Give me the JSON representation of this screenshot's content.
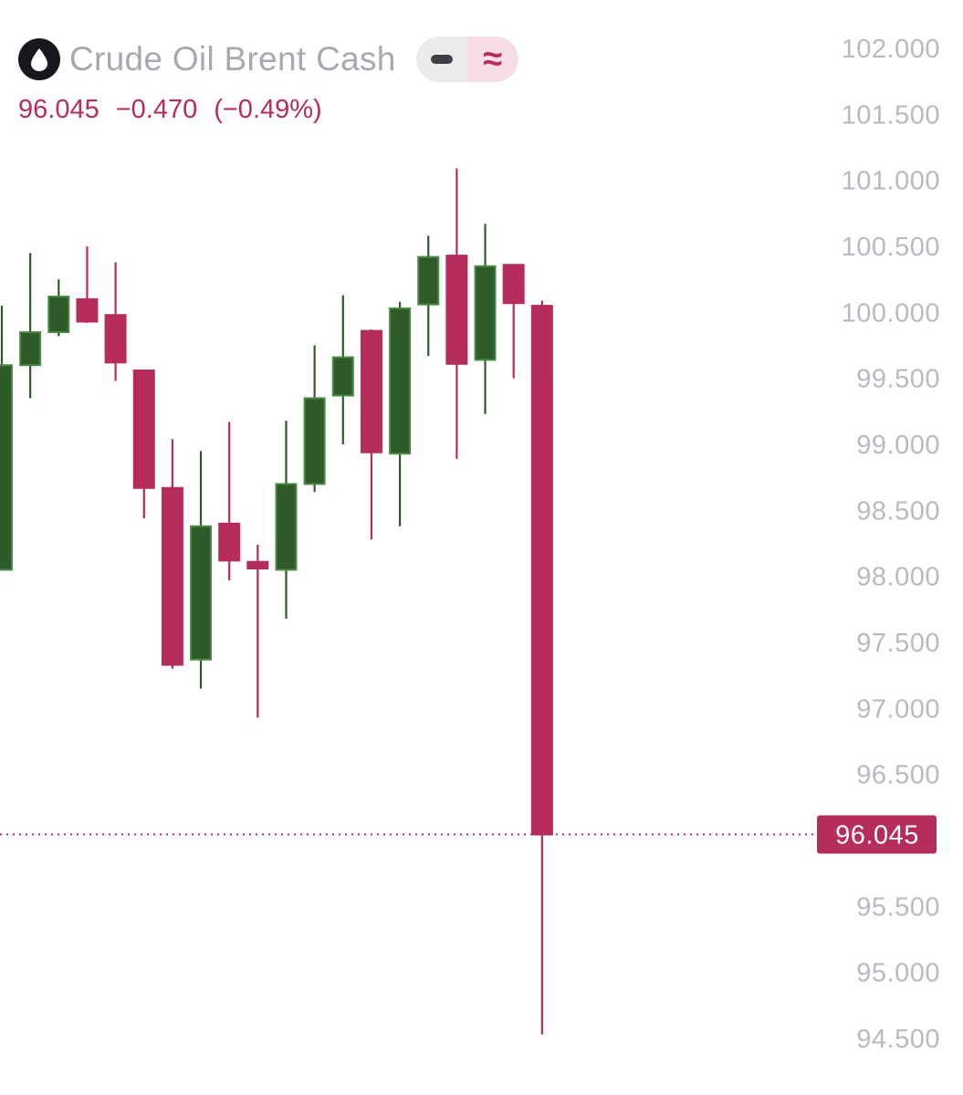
{
  "header": {
    "title": "Crude Oil Brent Cash",
    "icon": "oil-drop-icon",
    "price": "96.045",
    "change": "−0.470",
    "change_pct": "(−0.49%)",
    "toggle_line_icon": "dash-icon",
    "toggle_approx_label": "≈"
  },
  "colors": {
    "up": "#2f5b2a",
    "up_border": "#4a8a44",
    "down": "#b52c5d",
    "axis_text": "#b9bac1"
  },
  "chart_data": {
    "type": "candlestick",
    "title": "Crude Oil Brent Cash",
    "ylim": [
      94.15,
      102.65
    ],
    "yticks": [
      "102.000",
      "101.500",
      "101.000",
      "100.500",
      "100.000",
      "99.500",
      "99.000",
      "98.500",
      "98.000",
      "97.500",
      "97.000",
      "96.500",
      "95.500",
      "95.000",
      "94.500"
    ],
    "last_price": 96.045,
    "last_price_label": "96.045",
    "grid": false,
    "candles": [
      {
        "o": 98.05,
        "h": 100.05,
        "l": 98.05,
        "c": 99.6,
        "dir": "up"
      },
      {
        "o": 99.6,
        "h": 100.45,
        "l": 99.35,
        "c": 99.85,
        "dir": "up"
      },
      {
        "o": 99.85,
        "h": 100.25,
        "l": 99.82,
        "c": 100.12,
        "dir": "up"
      },
      {
        "o": 100.1,
        "h": 100.5,
        "l": 99.92,
        "c": 99.93,
        "dir": "down"
      },
      {
        "o": 99.98,
        "h": 100.38,
        "l": 99.48,
        "c": 99.62,
        "dir": "down"
      },
      {
        "o": 99.56,
        "h": 99.56,
        "l": 98.44,
        "c": 98.67,
        "dir": "down"
      },
      {
        "o": 98.67,
        "h": 99.04,
        "l": 97.3,
        "c": 97.33,
        "dir": "down"
      },
      {
        "o": 97.37,
        "h": 98.95,
        "l": 97.15,
        "c": 98.38,
        "dir": "up"
      },
      {
        "o": 98.4,
        "h": 99.17,
        "l": 97.97,
        "c": 98.12,
        "dir": "down"
      },
      {
        "o": 98.11,
        "h": 98.24,
        "l": 96.93,
        "c": 98.06,
        "dir": "down"
      },
      {
        "o": 98.05,
        "h": 99.18,
        "l": 97.68,
        "c": 98.7,
        "dir": "up"
      },
      {
        "o": 98.7,
        "h": 99.75,
        "l": 98.64,
        "c": 99.35,
        "dir": "up"
      },
      {
        "o": 99.37,
        "h": 100.13,
        "l": 99.0,
        "c": 99.66,
        "dir": "up"
      },
      {
        "o": 99.86,
        "h": 99.87,
        "l": 98.28,
        "c": 98.94,
        "dir": "down"
      },
      {
        "o": 98.93,
        "h": 100.08,
        "l": 98.38,
        "c": 100.03,
        "dir": "up"
      },
      {
        "o": 100.06,
        "h": 100.58,
        "l": 99.67,
        "c": 100.42,
        "dir": "up"
      },
      {
        "o": 100.43,
        "h": 101.09,
        "l": 98.89,
        "c": 99.61,
        "dir": "down"
      },
      {
        "o": 99.64,
        "h": 100.67,
        "l": 99.23,
        "c": 100.35,
        "dir": "up"
      },
      {
        "o": 100.36,
        "h": 100.36,
        "l": 99.5,
        "c": 100.07,
        "dir": "down"
      },
      {
        "o": 100.05,
        "h": 100.09,
        "l": 94.53,
        "c": 96.045,
        "dir": "down"
      }
    ]
  }
}
